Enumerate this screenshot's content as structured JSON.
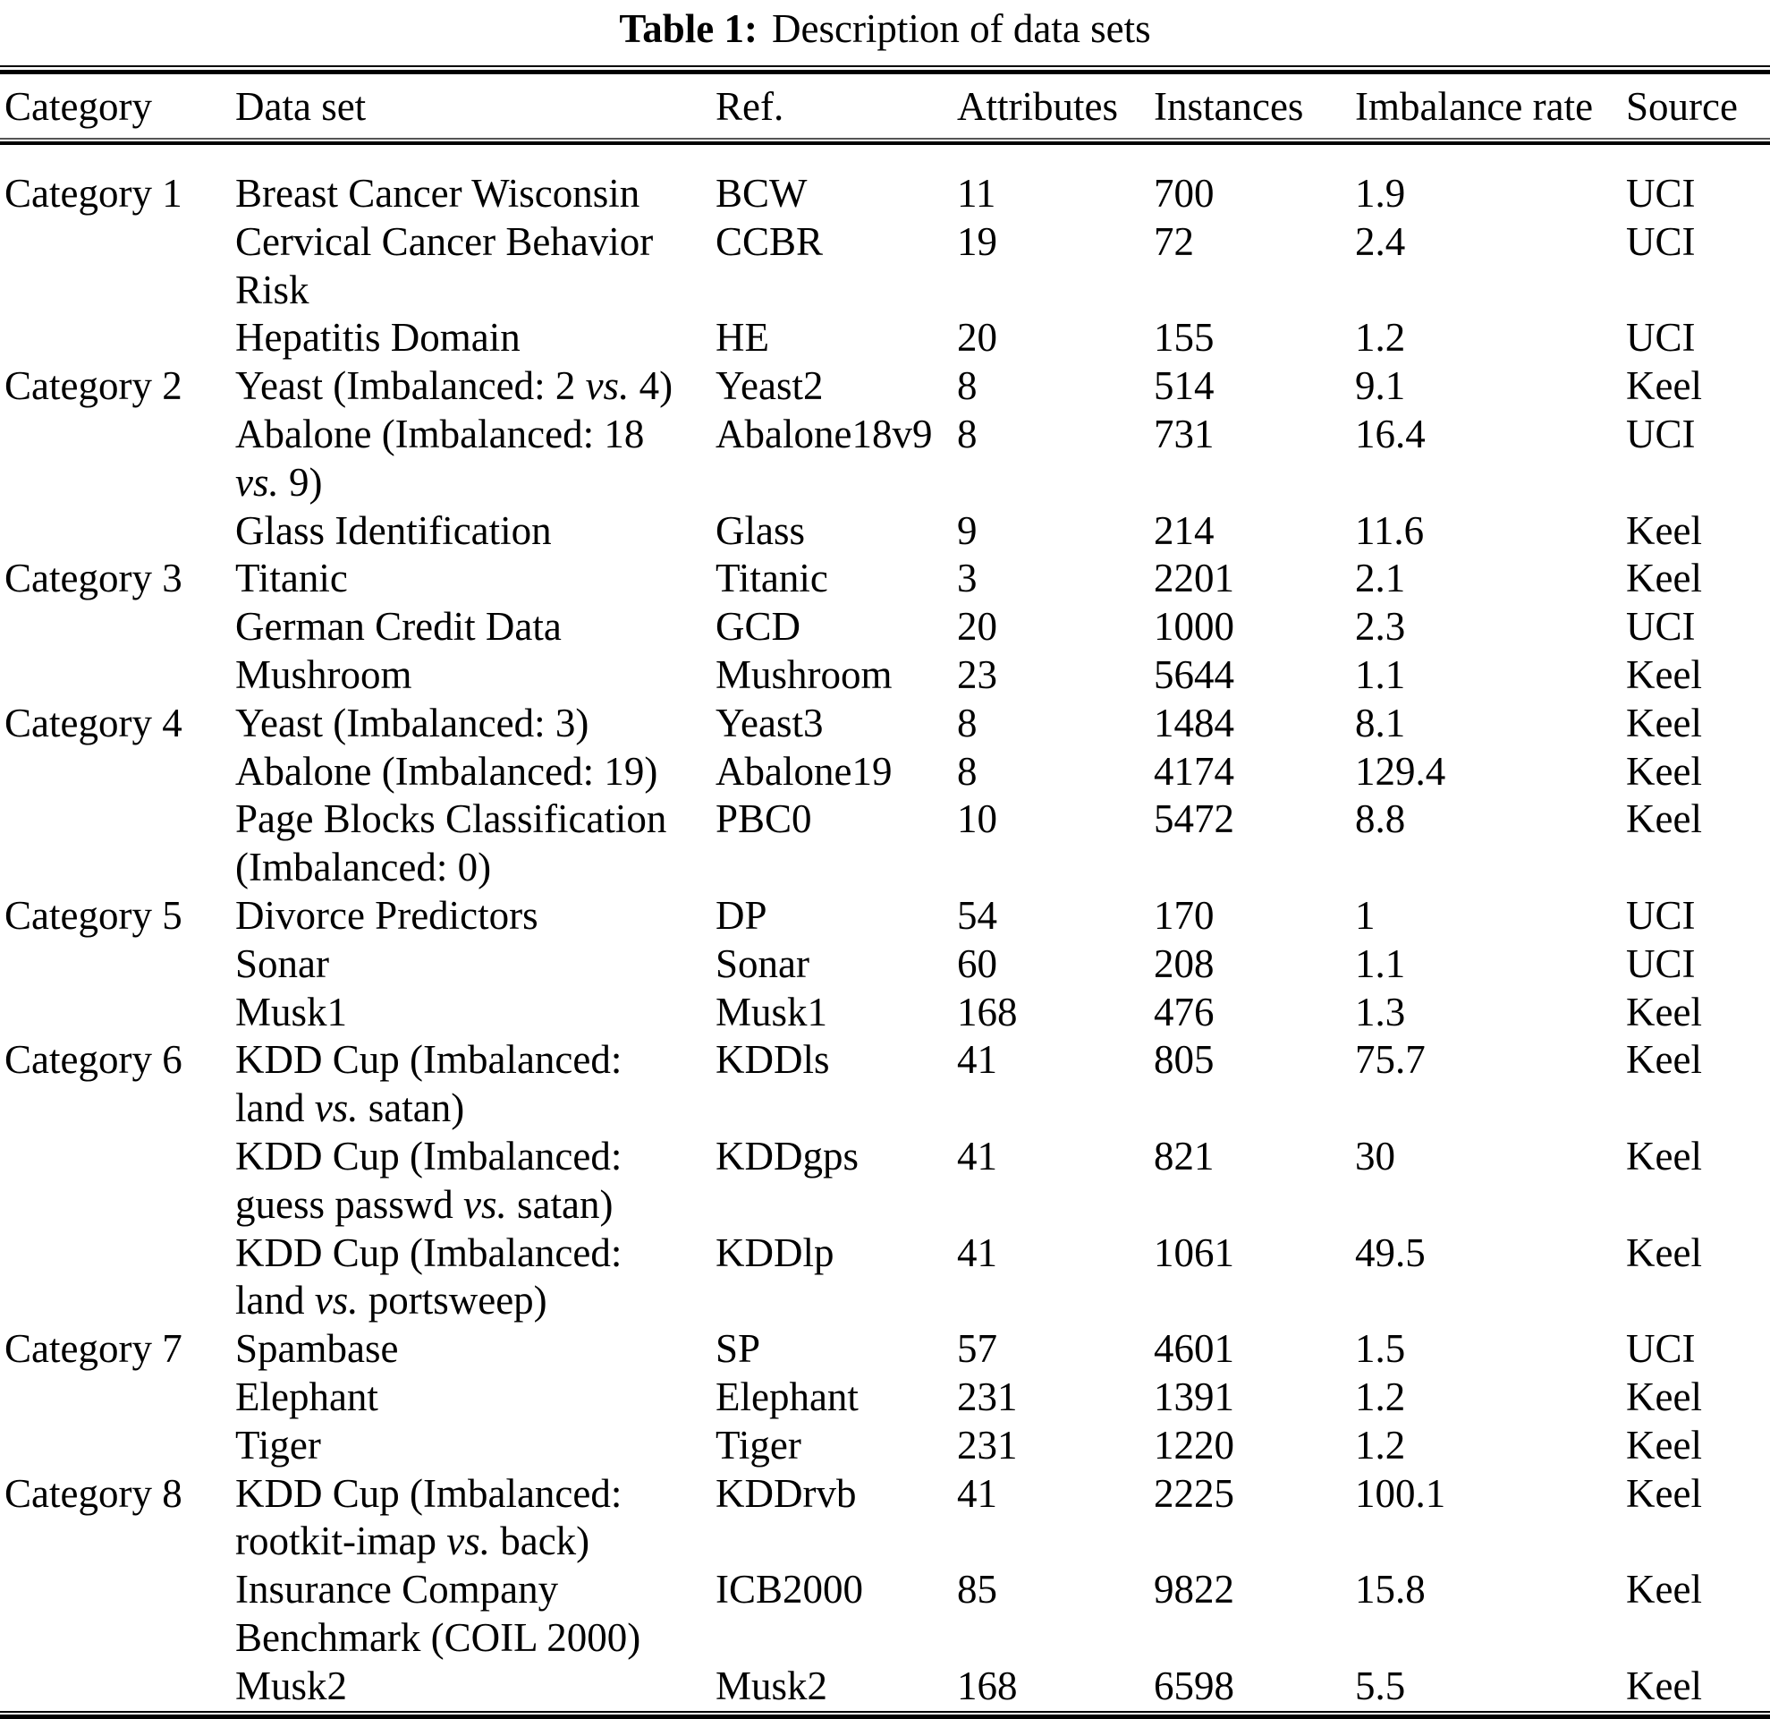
{
  "title": {
    "label": "Table 1:",
    "caption": "Description of data sets"
  },
  "table": {
    "columns": [
      "Category",
      "Data set",
      "Ref.",
      "Attributes",
      "Instances",
      "Imbalance rate",
      "Source"
    ],
    "italic_token": "vs.",
    "rows": [
      {
        "category": "Category 1",
        "dataset": "Breast Cancer Wisconsin",
        "ref": "BCW",
        "attributes": "11",
        "instances": "700",
        "imbalance_rate": "1.9",
        "source": "UCI"
      },
      {
        "category": "",
        "dataset": "Cervical Cancer Behavior\nRisk",
        "ref": "CCBR",
        "attributes": "19",
        "instances": "72",
        "imbalance_rate": "2.4",
        "source": "UCI"
      },
      {
        "category": "",
        "dataset": "Hepatitis Domain",
        "ref": "HE",
        "attributes": "20",
        "instances": "155",
        "imbalance_rate": "1.2",
        "source": "UCI"
      },
      {
        "category": "Category 2",
        "dataset": "Yeast (Imbalanced: 2 vs. 4)",
        "ref": "Yeast2",
        "attributes": "8",
        "instances": "514",
        "imbalance_rate": "9.1",
        "source": "Keel"
      },
      {
        "category": "",
        "dataset": "Abalone (Imbalanced: 18\nvs. 9)",
        "ref": "Abalone18v9",
        "attributes": "8",
        "instances": "731",
        "imbalance_rate": "16.4",
        "source": "UCI"
      },
      {
        "category": "",
        "dataset": "Glass Identification",
        "ref": "Glass",
        "attributes": "9",
        "instances": "214",
        "imbalance_rate": "11.6",
        "source": "Keel"
      },
      {
        "category": "Category 3",
        "dataset": "Titanic",
        "ref": "Titanic",
        "attributes": "3",
        "instances": "2201",
        "imbalance_rate": "2.1",
        "source": "Keel"
      },
      {
        "category": "",
        "dataset": "German Credit Data",
        "ref": "GCD",
        "attributes": "20",
        "instances": "1000",
        "imbalance_rate": "2.3",
        "source": "UCI"
      },
      {
        "category": "",
        "dataset": "Mushroom",
        "ref": "Mushroom",
        "attributes": "23",
        "instances": "5644",
        "imbalance_rate": "1.1",
        "source": "Keel"
      },
      {
        "category": "Category 4",
        "dataset": "Yeast (Imbalanced: 3)",
        "ref": "Yeast3",
        "attributes": "8",
        "instances": "1484",
        "imbalance_rate": "8.1",
        "source": "Keel"
      },
      {
        "category": "",
        "dataset": "Abalone (Imbalanced: 19)",
        "ref": "Abalone19",
        "attributes": "8",
        "instances": "4174",
        "imbalance_rate": "129.4",
        "source": "Keel"
      },
      {
        "category": "",
        "dataset": "Page Blocks Classification\n(Imbalanced: 0)",
        "ref": "PBC0",
        "attributes": "10",
        "instances": "5472",
        "imbalance_rate": "8.8",
        "source": "Keel"
      },
      {
        "category": "Category 5",
        "dataset": "Divorce Predictors",
        "ref": "DP",
        "attributes": "54",
        "instances": "170",
        "imbalance_rate": "1",
        "source": "UCI"
      },
      {
        "category": "",
        "dataset": "Sonar",
        "ref": "Sonar",
        "attributes": "60",
        "instances": "208",
        "imbalance_rate": "1.1",
        "source": "UCI"
      },
      {
        "category": "",
        "dataset": "Musk1",
        "ref": "Musk1",
        "attributes": "168",
        "instances": "476",
        "imbalance_rate": "1.3",
        "source": "Keel"
      },
      {
        "category": "Category 6",
        "dataset": "KDD Cup (Imbalanced:\nland vs. satan)",
        "ref": "KDDls",
        "attributes": "41",
        "instances": "805",
        "imbalance_rate": "75.7",
        "source": "Keel"
      },
      {
        "category": "",
        "dataset": "KDD Cup (Imbalanced:\nguess passwd vs. satan)",
        "ref": "KDDgps",
        "attributes": "41",
        "instances": "821",
        "imbalance_rate": "30",
        "source": "Keel"
      },
      {
        "category": "",
        "dataset": "KDD Cup (Imbalanced:\nland vs. portsweep)",
        "ref": "KDDlp",
        "attributes": "41",
        "instances": "1061",
        "imbalance_rate": "49.5",
        "source": "Keel"
      },
      {
        "category": "Category 7",
        "dataset": "Spambase",
        "ref": "SP",
        "attributes": "57",
        "instances": "4601",
        "imbalance_rate": "1.5",
        "source": "UCI"
      },
      {
        "category": "",
        "dataset": "Elephant",
        "ref": "Elephant",
        "attributes": "231",
        "instances": "1391",
        "imbalance_rate": "1.2",
        "source": "Keel"
      },
      {
        "category": "",
        "dataset": "Tiger",
        "ref": "Tiger",
        "attributes": "231",
        "instances": "1220",
        "imbalance_rate": "1.2",
        "source": "Keel"
      },
      {
        "category": "Category 8",
        "dataset": "KDD Cup (Imbalanced:\nrootkit-imap vs. back)",
        "ref": "KDDrvb",
        "attributes": "41",
        "instances": "2225",
        "imbalance_rate": "100.1",
        "source": "Keel"
      },
      {
        "category": "",
        "dataset": "Insurance Company\nBenchmark (COIL 2000)",
        "ref": "ICB2000",
        "attributes": "85",
        "instances": "9822",
        "imbalance_rate": "15.8",
        "source": "Keel"
      },
      {
        "category": "",
        "dataset": "Musk2",
        "ref": "Musk2",
        "attributes": "168",
        "instances": "6598",
        "imbalance_rate": "5.5",
        "source": "Keel"
      }
    ]
  }
}
